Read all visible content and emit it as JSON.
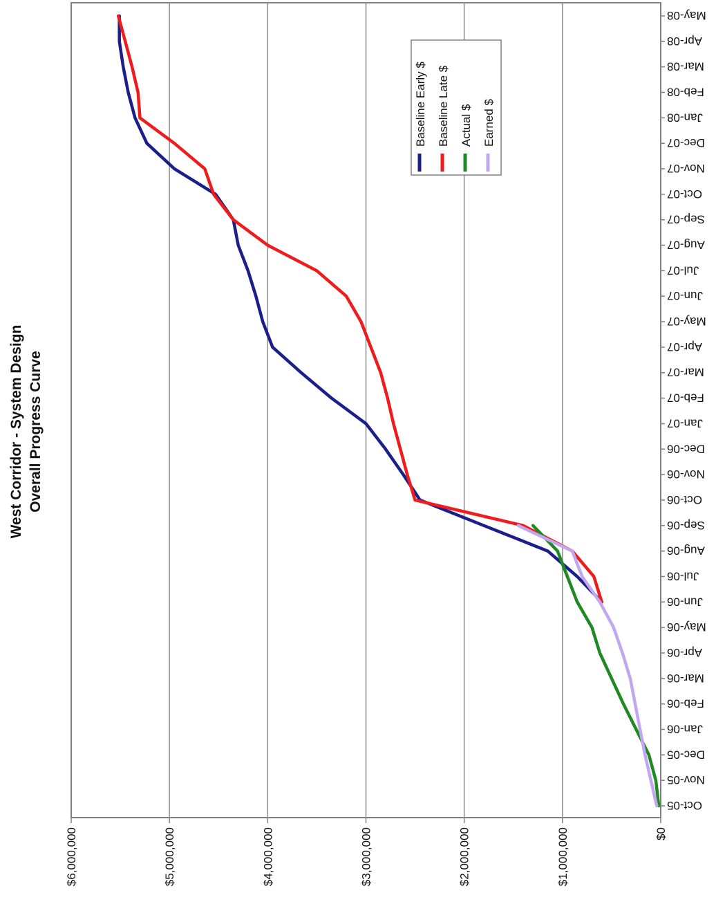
{
  "chart_data": {
    "type": "line",
    "title": "West Corridor - System Design",
    "subtitle": "Overall Progress Curve",
    "xlabel": "",
    "ylabel": "",
    "orientation": "rotated-180",
    "grid": true,
    "legend_position": "top-right",
    "categories": [
      "Oct-05",
      "Nov-05",
      "Dec-05",
      "Jan-06",
      "Feb-06",
      "Mar-06",
      "Apr-06",
      "May-06",
      "Jun-06",
      "Jul-06",
      "Aug-06",
      "Sep-06",
      "Oct-06",
      "Nov-06",
      "Dec-06",
      "Jan-07",
      "Feb-07",
      "Mar-07",
      "Apr-07",
      "May-07",
      "Jun-07",
      "Jul-07",
      "Aug-07",
      "Sep-07",
      "Oct-07",
      "Nov-07",
      "Dec-07",
      "Jan-08",
      "Feb-08",
      "Mar-08",
      "Apr-08",
      "May-08"
    ],
    "y_ticks": [
      "$0",
      "$1,000,000",
      "$2,000,000",
      "$3,000,000",
      "$4,000,000",
      "$5,000,000",
      "$6,000,000"
    ],
    "ylim": [
      0,
      6000000
    ],
    "series": [
      {
        "name": "Baseline Early $",
        "color": "#1b1f8a",
        "points": [
          [
            8,
            600000
          ],
          [
            9,
            850000
          ],
          [
            10,
            1150000
          ],
          [
            11,
            1800000
          ],
          [
            12,
            2450000
          ],
          [
            13,
            2620000
          ],
          [
            14,
            2800000
          ],
          [
            15,
            3000000
          ],
          [
            16,
            3350000
          ],
          [
            17,
            3660000
          ],
          [
            18,
            3950000
          ],
          [
            19,
            4050000
          ],
          [
            20,
            4120000
          ],
          [
            21,
            4200000
          ],
          [
            22,
            4300000
          ],
          [
            23,
            4350000
          ],
          [
            24,
            4530000
          ],
          [
            25,
            4950000
          ],
          [
            26,
            5230000
          ],
          [
            27,
            5350000
          ],
          [
            28,
            5420000
          ],
          [
            29,
            5470000
          ],
          [
            30,
            5510000
          ],
          [
            31,
            5510000
          ]
        ]
      },
      {
        "name": "Baseline Late $",
        "color": "#ee1c1c",
        "points": [
          [
            8,
            600000
          ],
          [
            9,
            680000
          ],
          [
            10,
            900000
          ],
          [
            11,
            1400000
          ],
          [
            12,
            2500000
          ],
          [
            13,
            2580000
          ],
          [
            14,
            2650000
          ],
          [
            15,
            2720000
          ],
          [
            16,
            2780000
          ],
          [
            17,
            2850000
          ],
          [
            18,
            2950000
          ],
          [
            19,
            3050000
          ],
          [
            20,
            3200000
          ],
          [
            21,
            3500000
          ],
          [
            22,
            4000000
          ],
          [
            23,
            4350000
          ],
          [
            24,
            4550000
          ],
          [
            25,
            4640000
          ],
          [
            26,
            4950000
          ],
          [
            27,
            5300000
          ],
          [
            28,
            5320000
          ],
          [
            29,
            5380000
          ],
          [
            30,
            5450000
          ],
          [
            31,
            5520000
          ]
        ]
      },
      {
        "name": "Actual $",
        "color": "#1e8a22",
        "points": [
          [
            0,
            20000
          ],
          [
            1,
            50000
          ],
          [
            2,
            120000
          ],
          [
            3,
            250000
          ],
          [
            4,
            380000
          ],
          [
            5,
            500000
          ],
          [
            6,
            620000
          ],
          [
            7,
            700000
          ],
          [
            8,
            850000
          ],
          [
            9,
            950000
          ],
          [
            10,
            1050000
          ],
          [
            11,
            1300000
          ]
        ]
      },
      {
        "name": "Earned $",
        "color": "#c3a6f0",
        "points": [
          [
            0,
            40000
          ],
          [
            1,
            100000
          ],
          [
            2,
            160000
          ],
          [
            3,
            210000
          ],
          [
            4,
            260000
          ],
          [
            5,
            310000
          ],
          [
            6,
            390000
          ],
          [
            7,
            480000
          ],
          [
            8,
            620000
          ],
          [
            9,
            800000
          ],
          [
            10,
            900000
          ],
          [
            11,
            1450000
          ]
        ]
      }
    ]
  }
}
